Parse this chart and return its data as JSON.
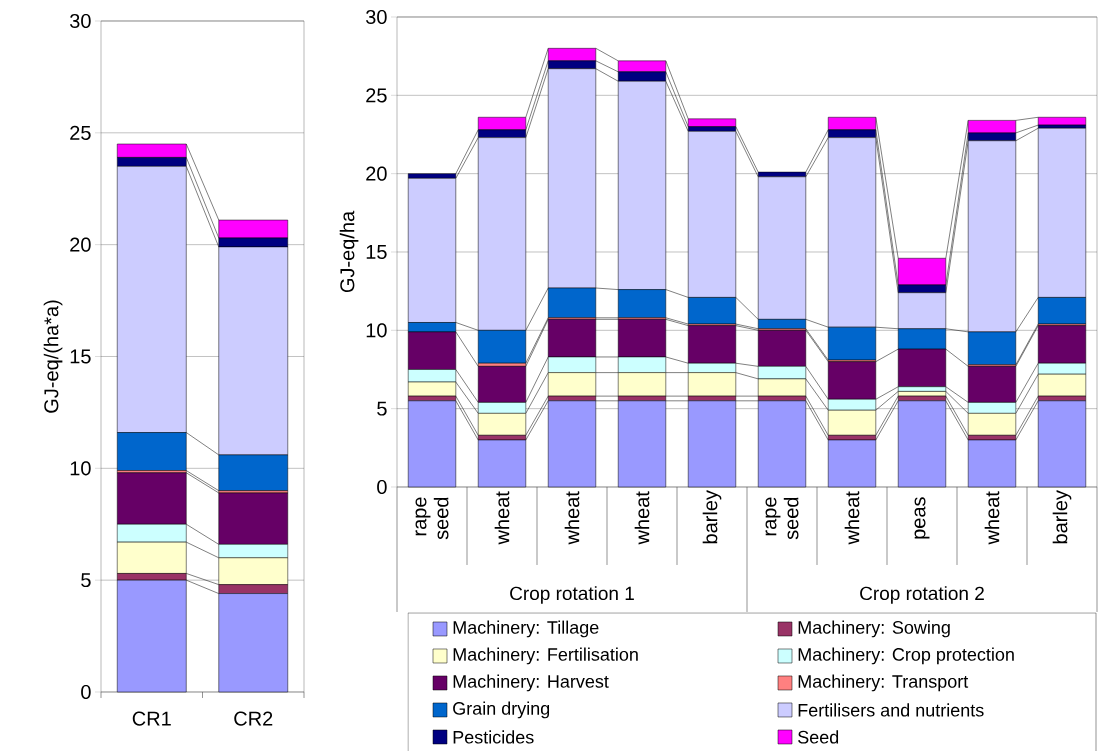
{
  "chart_data": [
    {
      "type": "bar",
      "stacked": true,
      "categories": [
        "CR1",
        "CR2"
      ],
      "ylabel": "GJ-eq/(ha*a)",
      "ylim": [
        0,
        30
      ],
      "yticks": [
        0,
        5,
        10,
        15,
        20,
        25,
        30
      ],
      "grid": "y",
      "series": [
        {
          "color": "#9999ff",
          "values": [
            5.0,
            4.4
          ]
        },
        {
          "color": "#993366",
          "values": [
            0.3,
            0.4
          ]
        },
        {
          "color": "#ffffcc",
          "values": [
            1.4,
            1.2
          ]
        },
        {
          "color": "#ccffff",
          "values": [
            0.8,
            0.6
          ]
        },
        {
          "color": "#660066",
          "values": [
            2.3,
            2.3
          ]
        },
        {
          "color": "#ff8080",
          "values": [
            0.1,
            0.1
          ]
        },
        {
          "color": "#0066cc",
          "values": [
            1.7,
            1.6
          ]
        },
        {
          "color": "#ccccff",
          "values": [
            11.9,
            9.3
          ]
        },
        {
          "color": "#000080",
          "values": [
            0.4,
            0.4
          ]
        },
        {
          "color": "#ff00ff",
          "values": [
            0.6,
            0.8
          ]
        }
      ]
    },
    {
      "type": "bar",
      "stacked": true,
      "categories": [
        "rape seed",
        "wheat",
        "wheat",
        "wheat",
        "barley",
        "rape seed",
        "wheat",
        "peas",
        "wheat",
        "barley"
      ],
      "ylabel": "GJ-eq/ha",
      "ylim": [
        0,
        30
      ],
      "yticks": [
        0,
        5,
        10,
        15,
        20,
        25,
        30
      ],
      "grid": "y",
      "legend": "bottom",
      "annotations": [
        "Crop rotation 1",
        "Crop rotation 2"
      ],
      "series": [
        {
          "name": "Machinery: Tillage",
          "color": "#9999ff",
          "values": [
            5.5,
            3.0,
            5.5,
            5.5,
            5.5,
            5.5,
            3.0,
            5.5,
            3.0,
            5.5
          ]
        },
        {
          "name": "Machinery: Sowing",
          "color": "#993366",
          "values": [
            0.3,
            0.3,
            0.3,
            0.3,
            0.3,
            0.3,
            0.3,
            0.3,
            0.3,
            0.3
          ]
        },
        {
          "name": "Machinery: Fertilisation",
          "color": "#ffffcc",
          "values": [
            0.9,
            1.4,
            1.5,
            1.5,
            1.5,
            1.1,
            1.6,
            0.3,
            1.4,
            1.4
          ]
        },
        {
          "name": "Machinery: Crop protection",
          "color": "#ccffff",
          "values": [
            0.8,
            0.7,
            1.0,
            1.0,
            0.6,
            0.8,
            0.7,
            0.3,
            0.7,
            0.7
          ]
        },
        {
          "name": "Machinery: Harvest",
          "color": "#660066",
          "values": [
            2.4,
            2.3,
            2.4,
            2.4,
            2.4,
            2.3,
            2.4,
            2.4,
            2.3,
            2.4
          ]
        },
        {
          "name": "Machinery: Transport",
          "color": "#ff8080",
          "values": [
            null,
            0.2,
            0.1,
            0.1,
            0.1,
            0.1,
            0.1,
            null,
            0.1,
            0.1
          ]
        },
        {
          "name": "Grain drying",
          "color": "#0066cc",
          "values": [
            0.6,
            2.1,
            1.9,
            1.8,
            1.7,
            0.6,
            2.1,
            1.3,
            2.1,
            1.7
          ]
        },
        {
          "name": "Fertilisers and nutrients",
          "color": "#ccccff",
          "values": [
            9.2,
            12.3,
            14.0,
            13.3,
            10.6,
            9.1,
            12.1,
            2.3,
            12.2,
            10.8
          ]
        },
        {
          "name": "Pesticides",
          "color": "#000080",
          "values": [
            0.3,
            0.5,
            0.5,
            0.6,
            0.3,
            0.3,
            0.5,
            0.5,
            0.5,
            0.2
          ]
        },
        {
          "name": "Seed",
          "color": "#ff00ff",
          "values": [
            null,
            0.8,
            0.8,
            0.7,
            0.5,
            null,
            0.8,
            1.7,
            0.8,
            0.5
          ]
        }
      ]
    }
  ]
}
